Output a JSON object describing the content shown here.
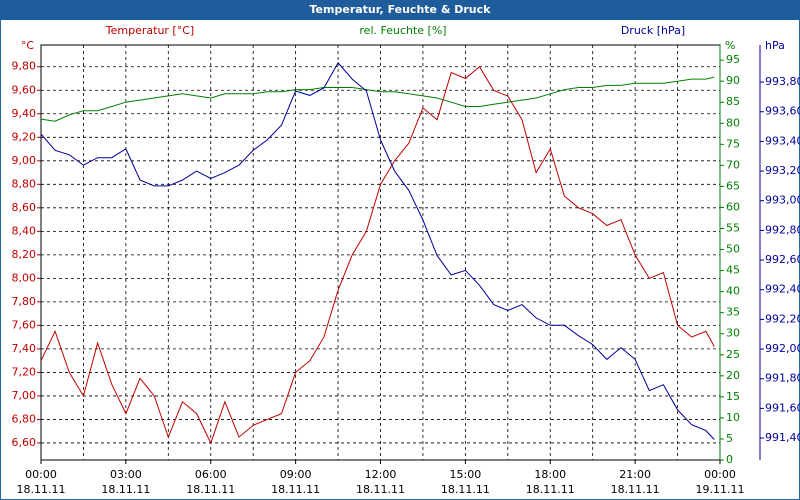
{
  "chart_data": {
    "type": "line",
    "title": "Temperatur, Feuchte & Druck",
    "axis_units": {
      "y": "°C",
      "y2": "%",
      "y3": "hPa"
    },
    "x": [
      0,
      0.5,
      1,
      1.5,
      2,
      2.5,
      3,
      3.5,
      4,
      4.5,
      5,
      5.5,
      6,
      6.5,
      7,
      7.5,
      8,
      8.5,
      9,
      9.5,
      10,
      10.5,
      11,
      11.5,
      12,
      12.5,
      13,
      13.5,
      14,
      14.5,
      15,
      15.5,
      16,
      16.5,
      17,
      17.5,
      18,
      18.5,
      19,
      19.5,
      20,
      20.5,
      21,
      21.5,
      22,
      22.5,
      23,
      23.5,
      23.8
    ],
    "xlim": [
      0,
      24
    ],
    "xticks": [
      {
        "value": 0,
        "label": "00:00",
        "date": "18.11.11"
      },
      {
        "value": 3,
        "label": "03:00",
        "date": "18.11.11"
      },
      {
        "value": 6,
        "label": "06:00",
        "date": "18.11.11"
      },
      {
        "value": 9,
        "label": "09:00",
        "date": "18.11.11"
      },
      {
        "value": 12,
        "label": "12:00",
        "date": "18.11.11"
      },
      {
        "value": 15,
        "label": "15:00",
        "date": "18.11.11"
      },
      {
        "value": 18,
        "label": "18:00",
        "date": "18.11.11"
      },
      {
        "value": 21,
        "label": "21:00",
        "date": "18.11.11"
      },
      {
        "value": 24,
        "label": "00:00",
        "date": "19.11.11"
      }
    ],
    "xgrid": [
      1.5,
      3,
      4.5,
      6,
      7.5,
      9,
      10.5,
      12,
      13.5,
      15,
      16.5,
      18,
      19.5,
      21,
      22.5
    ],
    "ylim": [
      6.455,
      9.985
    ],
    "yticks": [
      {
        "value": 6.6,
        "label": "6,60"
      },
      {
        "value": 6.8,
        "label": "6,80"
      },
      {
        "value": 7.0,
        "label": "7,00"
      },
      {
        "value": 7.2,
        "label": "7,20"
      },
      {
        "value": 7.4,
        "label": "7,40"
      },
      {
        "value": 7.6,
        "label": "7,60"
      },
      {
        "value": 7.8,
        "label": "7,80"
      },
      {
        "value": 8.0,
        "label": "8,00"
      },
      {
        "value": 8.2,
        "label": "8,20"
      },
      {
        "value": 8.4,
        "label": "8,40"
      },
      {
        "value": 8.6,
        "label": "8,60"
      },
      {
        "value": 8.8,
        "label": "8,80"
      },
      {
        "value": 9.0,
        "label": "9,00"
      },
      {
        "value": 9.2,
        "label": "9,20"
      },
      {
        "value": 9.4,
        "label": "9,40"
      },
      {
        "value": 9.6,
        "label": "9,60"
      },
      {
        "value": 9.8,
        "label": "9,80"
      }
    ],
    "y2lim": [
      0,
      98.6
    ],
    "y2ticks": [
      0,
      5,
      10,
      15,
      20,
      25,
      30,
      35,
      40,
      45,
      50,
      55,
      60,
      65,
      70,
      75,
      80,
      85,
      90,
      95
    ],
    "y3lim": [
      991.252,
      994.05
    ],
    "y3ticks": [
      {
        "value": 991.4,
        "label": "991,40"
      },
      {
        "value": 991.6,
        "label": "991,60"
      },
      {
        "value": 991.8,
        "label": "991,80"
      },
      {
        "value": 992.0,
        "label": "992,00"
      },
      {
        "value": 992.2,
        "label": "992,20"
      },
      {
        "value": 992.4,
        "label": "992,40"
      },
      {
        "value": 992.6,
        "label": "992,60"
      },
      {
        "value": 992.8,
        "label": "992,80"
      },
      {
        "value": 993.0,
        "label": "993,00"
      },
      {
        "value": 993.2,
        "label": "993,20"
      },
      {
        "value": 993.4,
        "label": "993,40"
      },
      {
        "value": 993.6,
        "label": "993,60"
      },
      {
        "value": 993.8,
        "label": "993,80"
      }
    ],
    "grid": true,
    "series": [
      {
        "name": "Temperatur [°C]",
        "color": "#c00000",
        "axis": "y",
        "values": [
          7.3,
          7.55,
          7.2,
          7.0,
          7.45,
          7.1,
          6.85,
          7.15,
          7.0,
          6.65,
          6.95,
          6.85,
          6.6,
          6.95,
          6.65,
          6.75,
          6.8,
          6.85,
          7.2,
          7.3,
          7.5,
          7.9,
          8.2,
          8.4,
          8.8,
          9.0,
          9.15,
          9.45,
          9.35,
          9.75,
          9.7,
          9.8,
          9.6,
          9.55,
          9.35,
          8.9,
          9.1,
          8.7,
          8.6,
          8.55,
          8.45,
          8.5,
          8.2,
          8.0,
          8.05,
          7.6,
          7.5,
          7.55,
          7.42
        ]
      },
      {
        "name": "rel. Feuchte [%]",
        "color": "#008000",
        "axis": "y2",
        "values": [
          81,
          80.5,
          82,
          83,
          83,
          84,
          85,
          85.5,
          86,
          86.5,
          87,
          86.5,
          86,
          87,
          87,
          87,
          87.5,
          87.5,
          88,
          88,
          88.5,
          88.5,
          88.5,
          88,
          87.5,
          87.5,
          87,
          86.5,
          86,
          85,
          84,
          84,
          84.5,
          85,
          85.5,
          86,
          87,
          88,
          88.5,
          88.5,
          89,
          89,
          89.5,
          89.5,
          89.5,
          90,
          90.5,
          90.5,
          91
        ]
      },
      {
        "name": "Druck [hPa]",
        "color": "#000099",
        "axis": "y3",
        "values": [
          993.45,
          993.34,
          993.31,
          993.24,
          993.29,
          993.29,
          993.35,
          993.14,
          993.1,
          993.1,
          993.14,
          993.2,
          993.15,
          993.19,
          993.24,
          993.34,
          993.41,
          993.51,
          993.74,
          993.71,
          993.76,
          993.93,
          993.82,
          993.74,
          993.41,
          993.2,
          993.07,
          992.87,
          992.63,
          992.5,
          992.53,
          992.43,
          992.3,
          992.26,
          992.3,
          992.21,
          992.16,
          992.16,
          992.09,
          992.03,
          991.93,
          992.01,
          991.93,
          991.72,
          991.76,
          991.59,
          991.49,
          991.45,
          991.39
        ]
      }
    ]
  }
}
